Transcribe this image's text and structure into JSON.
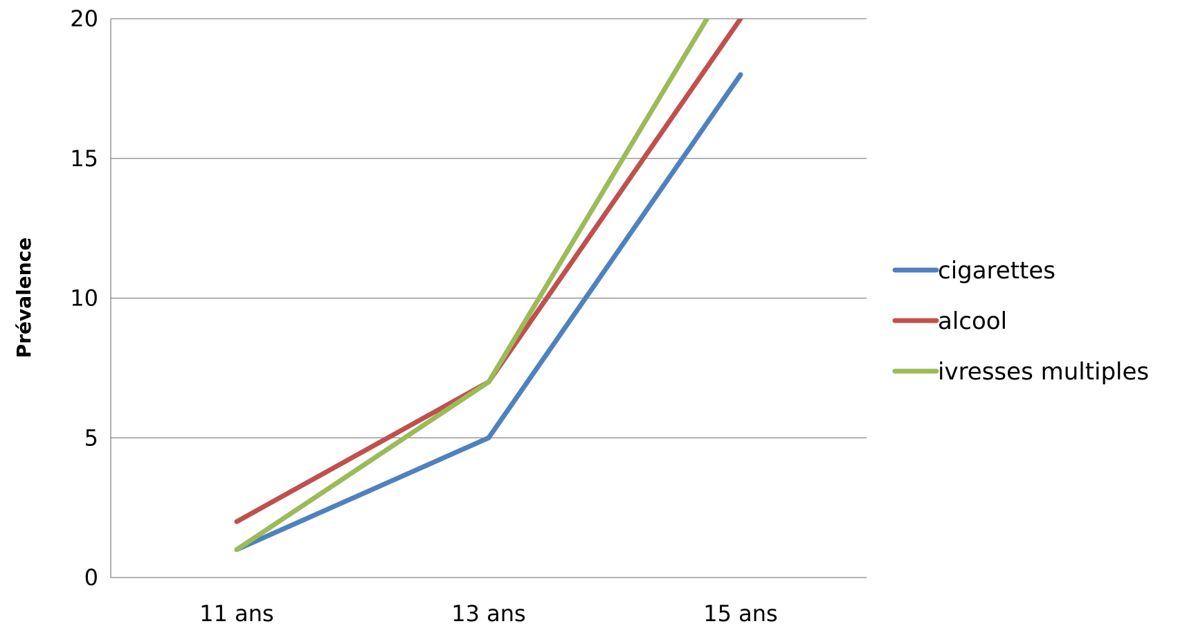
{
  "chart_data": {
    "type": "line",
    "categories": [
      "11 ans",
      "13 ans",
      "15 ans"
    ],
    "series": [
      {
        "name": "cigarettes",
        "color": "#4F81BD",
        "values": [
          1,
          5,
          18
        ]
      },
      {
        "name": "alcool",
        "color": "#C0504D",
        "values": [
          2,
          7,
          20
        ]
      },
      {
        "name": "ivresses multiples",
        "color": "#9BBB59",
        "values": [
          1,
          7,
          22
        ]
      }
    ],
    "ylabel": "Prévalence",
    "xlabel": "",
    "ylim": [
      0,
      20
    ],
    "yticks": [
      0,
      5,
      10,
      15,
      20
    ],
    "grid": true,
    "legend_position": "right"
  }
}
